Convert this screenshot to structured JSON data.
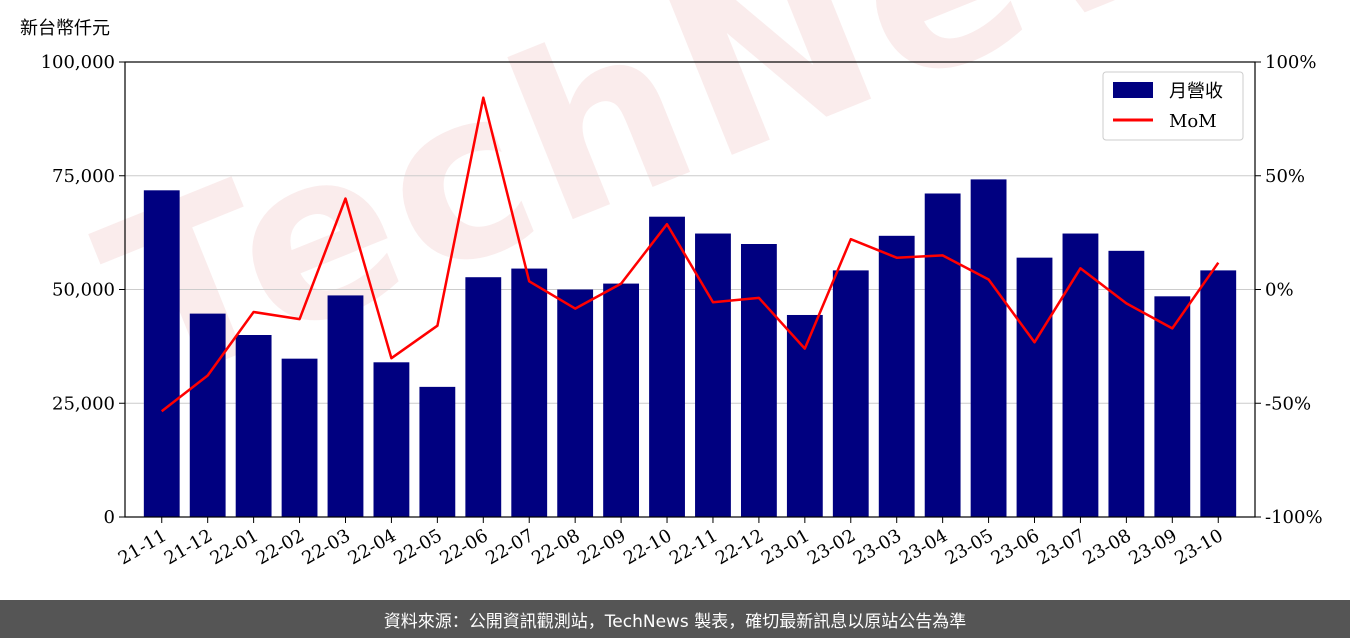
{
  "chart_data": {
    "type": "bar",
    "unit_label": "新台幣仟元",
    "categories": [
      "21-11",
      "21-12",
      "22-01",
      "22-02",
      "22-03",
      "22-04",
      "22-05",
      "22-06",
      "22-07",
      "22-08",
      "22-09",
      "22-10",
      "22-11",
      "22-12",
      "23-01",
      "23-02",
      "23-03",
      "23-04",
      "23-05",
      "23-06",
      "23-07",
      "23-08",
      "23-09",
      "23-10"
    ],
    "series": [
      {
        "name": "月營收",
        "kind": "bar",
        "axis": "left",
        "color": "#000080",
        "values": [
          71800,
          44700,
          40000,
          34800,
          48700,
          34000,
          28600,
          52700,
          54600,
          50000,
          51300,
          66000,
          62300,
          60000,
          44400,
          54200,
          61800,
          71100,
          74200,
          57000,
          62300,
          58500,
          48500,
          54200
        ]
      },
      {
        "name": "MoM",
        "kind": "line",
        "axis": "right",
        "color": "#ff0000",
        "values": [
          -53.5,
          -37.8,
          -9.9,
          -13.0,
          40.0,
          -30.2,
          -15.9,
          84.3,
          3.6,
          -8.4,
          2.6,
          28.7,
          -5.6,
          -3.7,
          -26.0,
          22.1,
          14.0,
          15.0,
          4.4,
          -23.2,
          9.3,
          -6.1,
          -17.1,
          11.8
        ]
      }
    ],
    "y_left": {
      "range": [
        0,
        100000
      ],
      "ticks": [
        "0",
        "25,000",
        "50,000",
        "75,000",
        "100,000"
      ],
      "tick_values": [
        0,
        25000,
        50000,
        75000,
        100000
      ]
    },
    "y_right": {
      "range": [
        -100,
        100
      ],
      "ticks": [
        "-100%",
        "-50%",
        "0%",
        "50%",
        "100%"
      ],
      "tick_values": [
        -100,
        -50,
        0,
        50,
        100
      ]
    },
    "grid": true,
    "legend_position": "top-right",
    "watermark": "TechNews"
  },
  "footer": {
    "text": "資料來源：公開資訊觀測站，TechNews 製表，確切最新訊息以原站公告為準"
  }
}
